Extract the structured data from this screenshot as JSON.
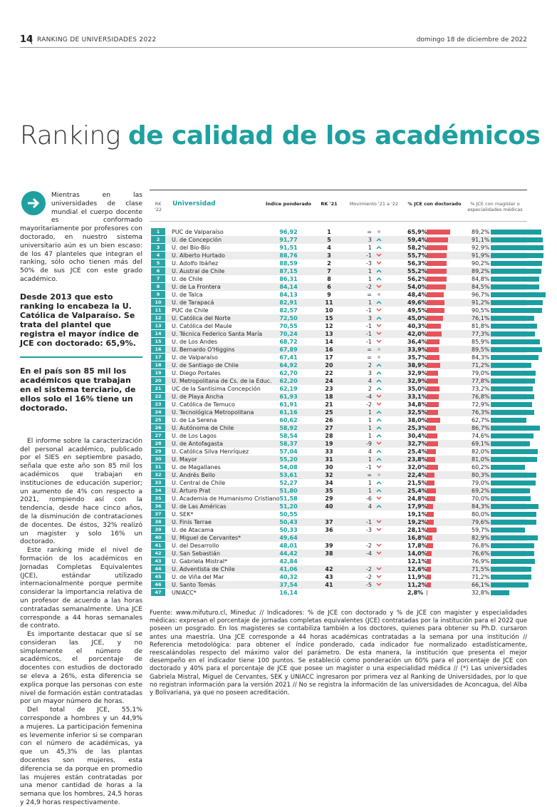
{
  "header": {
    "page": "14",
    "section": "RANKING DE UNIVERSIDADES 2022",
    "date": "domingo 18 de diciembre de 2022"
  },
  "title": {
    "light": "Ranking",
    "bold": "de calidad de los académicos"
  },
  "intro": "Mientras en las universidades de clase mundial el cuerpo docente es conformado mayoritariamente por profesores con doctorado, en nuestro sistema universitario aún es un bien escaso: de los 47 planteles que integran el ranking, sólo ocho tienen más del 50% de sus JCE con este grado académico.",
  "highlights": [
    "Desde 2013 que esto ranking lo encabeza la U. Católica de Valparaíso. Se trata del plantel que registra el mayor índice de JCE con doctorado: 65,9%.",
    "En el país son 85 mil los académicos que trabajan en el sistema terciario, de ellos solo el 16% tiene un doctorado."
  ],
  "body": [
    "El informe sobre la caracterización del personal académico, publicado por el SIES en septiembre pasado, señala que este año son 85 mil los académicos que trabajan en instituciones de educación superior; un aumento de 4% con respecto a 2021, rompiendo así con la tendencia, desde hace cinco años, de la disminución de contrataciones de docentes. De éstos, 32% realizó un magister y solo 16% un doctorado.",
    "Este ranking mide el nivel de formación de los académicos en Jornadas Completas Equivalentes (JCE), estándar utilizado internacionalmente porque permite considerar la importancia relativa de un profesor de acuerdo a las horas contratadas semanalmente. Una JCE corresponde a 44 horas semanales de contrato.",
    "Es importante destacar que sí se consideran las JCE, y no simplemente el número de académicos, el porcentaje de docentes con estudios de doctorado se eleva a 26%, esta diferencia se explica porque las personas con este nivel de formación están contratadas por un mayor número de horas.",
    "Del total de JCE, 55,1% corresponde a hombres y un 44,9% a mujeres. La participación femenina es levemente inferior si se comparan con el número de académicas, ya que un 45,3% de las plantas docentes son mujeres, esta diferencia se da porque en promedio las mujeres están contratadas por una menor cantidad de horas a la semana que los hombres, 24,5 horas y 24,9 horas respectivamente."
  ],
  "table": {
    "columns": [
      "RK '22",
      "Universidad",
      "Índice ponderado",
      "RK '21",
      "Movimiento '21 a '22",
      "% JCE con doctorado",
      "% JCE con magíster o especialidades médicas"
    ],
    "rows": [
      [
        "1",
        "PUC de Valparaíso",
        "96,92",
        "1",
        "=",
        {
          "value": 65.9,
          "label": "65,9%"
        },
        {
          "value": 89.2,
          "label": "89,2%"
        }
      ],
      [
        "2",
        "U. de Concepción",
        "91,77",
        "5",
        "3",
        {
          "value": 59.4,
          "label": "59,4%"
        },
        {
          "value": 91.1,
          "label": "91,1%"
        }
      ],
      [
        "3",
        "U. del Bío-Bío",
        "91,51",
        "4",
        "1",
        {
          "value": 58.2,
          "label": "58,2%"
        },
        {
          "value": 92.9,
          "label": "92,9%"
        }
      ],
      [
        "4",
        "U. Alberto Hurtado",
        "88,76",
        "3",
        "-1",
        {
          "value": 55.7,
          "label": "55,7%"
        },
        {
          "value": 91.9,
          "label": "91,9%"
        }
      ],
      [
        "5",
        "U. Adolfo Ibáñez",
        "88,59",
        "2",
        "-3",
        {
          "value": 56.3,
          "label": "56,3%"
        },
        {
          "value": 90.2,
          "label": "90,2%"
        }
      ],
      [
        "6",
        "U. Austral de Chile",
        "87,15",
        "7",
        "1",
        {
          "value": 55.2,
          "label": "55,2%"
        },
        {
          "value": 89.2,
          "label": "89,2%"
        }
      ],
      [
        "7",
        "U. de Chile",
        "86,31",
        "8",
        "1",
        {
          "value": 56.2,
          "label": "56,2%"
        },
        {
          "value": 84.8,
          "label": "84,8%"
        }
      ],
      [
        "8",
        "U. de La Frontera",
        "84,14",
        "6",
        "-2",
        {
          "value": 54.0,
          "label": "54,0%"
        },
        {
          "value": 84.5,
          "label": "84,5%"
        }
      ],
      [
        "9",
        "U. de Talca",
        "84,13",
        "9",
        "=",
        {
          "value": 48.4,
          "label": "48,4%"
        },
        {
          "value": 96.7,
          "label": "96,7%"
        }
      ],
      [
        "10",
        "U. de Tarapacá",
        "82,91",
        "11",
        "1",
        {
          "value": 49.6,
          "label": "49,6%"
        },
        {
          "value": 91.2,
          "label": "91,2%"
        }
      ],
      [
        "11",
        "PUC de Chile",
        "82,57",
        "10",
        "-1",
        {
          "value": 49.5,
          "label": "49,5%"
        },
        {
          "value": 90.5,
          "label": "90,5%"
        }
      ],
      [
        "12",
        "U. Católica del Norte",
        "72,50",
        "15",
        "3",
        {
          "value": 45.0,
          "label": "45,0%"
        },
        {
          "value": 76.1,
          "label": "76,1%"
        }
      ],
      [
        "13",
        "U. Católica del Maule",
        "70,55",
        "12",
        "-1",
        {
          "value": 40.3,
          "label": "40,3%"
        },
        {
          "value": 81.8,
          "label": "81,8%"
        }
      ],
      [
        "14",
        "U. Técnica Federico Santa María",
        "70,24",
        "13",
        "-1",
        {
          "value": 42.0,
          "label": "42,0%"
        },
        {
          "value": 77.3,
          "label": "77,3%"
        }
      ],
      [
        "15",
        "U. de Los Andes",
        "68,72",
        "14",
        "-1",
        {
          "value": 36.4,
          "label": "36,4%"
        },
        {
          "value": 85.9,
          "label": "85,9%"
        }
      ],
      [
        "16",
        "U. Bernardo O'Higgins",
        "67,89",
        "16",
        "=",
        {
          "value": 33.9,
          "label": "33,9%"
        },
        {
          "value": 89.5,
          "label": "89,5%"
        }
      ],
      [
        "17",
        "U. de Valparaíso",
        "67,41",
        "17",
        "=",
        {
          "value": 35.7,
          "label": "35,7%"
        },
        {
          "value": 84.3,
          "label": "84,3%"
        }
      ],
      [
        "18",
        "U. de Santiago de Chile",
        "64,92",
        "20",
        "2",
        {
          "value": 38.9,
          "label": "38,9%"
        },
        {
          "value": 71.2,
          "label": "71,2%"
        }
      ],
      [
        "19",
        "U. Diego Portales",
        "62,70",
        "22",
        "3",
        {
          "value": 32.9,
          "label": "32,9%"
        },
        {
          "value": 79.0,
          "label": "79,0%"
        }
      ],
      [
        "20",
        "U. Metropolitana de Cs. de la Educ.",
        "62,20",
        "24",
        "4",
        {
          "value": 32.9,
          "label": "32,9%"
        },
        {
          "value": 77.8,
          "label": "77,8%"
        }
      ],
      [
        "21",
        "UC de la Santísima Concepción",
        "62,19",
        "23",
        "2",
        {
          "value": 35.0,
          "label": "35,0%"
        },
        {
          "value": 73.2,
          "label": "73,2%"
        }
      ],
      [
        "22",
        "U. de Playa Ancha",
        "61,93",
        "18",
        "-4",
        {
          "value": 33.1,
          "label": "33,1%"
        },
        {
          "value": 76.8,
          "label": "76,8%"
        }
      ],
      [
        "23",
        "U. Católica de Temuco",
        "61,91",
        "21",
        "-2",
        {
          "value": 34.8,
          "label": "34,8%"
        },
        {
          "value": 72.9,
          "label": "72,9%"
        }
      ],
      [
        "24",
        "U. Tecnológica Metropolitana",
        "61,16",
        "25",
        "1",
        {
          "value": 32.5,
          "label": "32,5%"
        },
        {
          "value": 76.3,
          "label": "76,3%"
        }
      ],
      [
        "25",
        "U. de La Serena",
        "60,62",
        "26",
        "1",
        {
          "value": 38.0,
          "label": "38,0%"
        },
        {
          "value": 62.7,
          "label": "62,7%"
        }
      ],
      [
        "26",
        "U. Autónoma de Chile",
        "58,92",
        "27",
        "1",
        {
          "value": 25.3,
          "label": "25,3%"
        },
        {
          "value": 86.7,
          "label": "86,7%"
        }
      ],
      [
        "27",
        "U. de Los Lagos",
        "58,54",
        "28",
        "1",
        {
          "value": 30.4,
          "label": "30,4%"
        },
        {
          "value": 74.6,
          "label": "74,6%"
        }
      ],
      [
        "28",
        "U. de Antofagasta",
        "58,37",
        "19",
        "-9",
        {
          "value": 32.7,
          "label": "32,7%"
        },
        {
          "value": 69.1,
          "label": "69,1%"
        }
      ],
      [
        "29",
        "U. Católica Silva Henríquez",
        "57,04",
        "33",
        "4",
        {
          "value": 25.4,
          "label": "25,4%"
        },
        {
          "value": 82.0,
          "label": "82,0%"
        }
      ],
      [
        "30",
        "U. Mayor",
        "55,20",
        "31",
        "1",
        {
          "value": 23.8,
          "label": "23,8%"
        },
        {
          "value": 81.0,
          "label": "81,0%"
        }
      ],
      [
        "31",
        "U. de Magallanes",
        "54,08",
        "30",
        "-1",
        {
          "value": 32.0,
          "label": "32,0%"
        },
        {
          "value": 60.2,
          "label": "60,2%"
        }
      ],
      [
        "32",
        "U. Andrés Bello",
        "53,61",
        "32",
        "=",
        {
          "value": 22.4,
          "label": "22,4%"
        },
        {
          "value": 80.3,
          "label": "80,3%"
        }
      ],
      [
        "33",
        "U. Central de Chile",
        "52,27",
        "34",
        "1",
        {
          "value": 21.5,
          "label": "21,5%"
        },
        {
          "value": 79.0,
          "label": "79,0%"
        }
      ],
      [
        "34",
        "U. Arturo Prat",
        "51,80",
        "35",
        "1",
        {
          "value": 25.4,
          "label": "25,4%"
        },
        {
          "value": 69.2,
          "label": "69,2%"
        }
      ],
      [
        "35",
        "U. Academia de Humanismo Cristiano",
        "51,58",
        "29",
        "-6",
        {
          "value": 24.8,
          "label": "24,8%"
        },
        {
          "value": 70.0,
          "label": "70,0%"
        }
      ],
      [
        "36",
        "U. de Las Américas",
        "51,20",
        "40",
        "4",
        {
          "value": 17.9,
          "label": "17,9%"
        },
        {
          "value": 84.3,
          "label": "84,3%"
        }
      ],
      [
        "37",
        "U. SEK*",
        "50,55",
        null,
        null,
        {
          "value": 19.1,
          "label": "19,1%"
        },
        {
          "value": 80.0,
          "label": "80,0%"
        }
      ],
      [
        "38",
        "U. Finis Terrae",
        "50,43",
        "37",
        "-1",
        {
          "value": 19.2,
          "label": "19,2%"
        },
        {
          "value": 79.6,
          "label": "79,6%"
        }
      ],
      [
        "39",
        "U. de Atacama",
        "50,33",
        "36",
        "-3",
        {
          "value": 28.1,
          "label": "28,1%"
        },
        {
          "value": 59.7,
          "label": "59,7%"
        }
      ],
      [
        "40",
        "U. Miguel de Cervantes*",
        "49,64",
        null,
        null,
        {
          "value": 16.8,
          "label": "16,8%"
        },
        {
          "value": 82.9,
          "label": "82,9%"
        }
      ],
      [
        "41",
        "U. del Desarrollo",
        "48,01",
        "39",
        "-2",
        {
          "value": 17.8,
          "label": "17,8%"
        },
        {
          "value": 76.8,
          "label": "76,8%"
        }
      ],
      [
        "42",
        "U. San Sebastián",
        "44,42",
        "38",
        "-4",
        {
          "value": 14.0,
          "label": "14,0%"
        },
        {
          "value": 76.6,
          "label": "76,6%"
        }
      ],
      [
        "43",
        "U. Gabriela Mistral*",
        "42,84",
        null,
        null,
        {
          "value": 12.1,
          "label": "12,1%"
        },
        {
          "value": 76.9,
          "label": "76,9%"
        }
      ],
      [
        "44",
        "U. Adventista de Chile",
        "41,06",
        "42",
        "-2",
        {
          "value": 12.6,
          "label": "12,6%"
        },
        {
          "value": 71.5,
          "label": "71,5%"
        }
      ],
      [
        "45",
        "U. de Viña del Mar",
        "40,32",
        "43",
        "-2",
        {
          "value": 11.9,
          "label": "11,9%"
        },
        {
          "value": 71.2,
          "label": "71,2%"
        }
      ],
      [
        "46",
        "U. Santo Tomás",
        "37,54",
        "41",
        "-5",
        {
          "value": 11.2,
          "label": "11,2%"
        },
        {
          "value": 66.1,
          "label": "66,1%"
        }
      ],
      [
        "47",
        "UNIACC*",
        "16,14",
        null,
        null,
        {
          "value": 2.8,
          "label": "2,8%"
        },
        {
          "value": 32.8,
          "label": "32,8%"
        }
      ]
    ]
  },
  "footnote": "Fuente: www.mifuturo.cl, Mineduc // Indicadores: % de JCE con doctorado y % de JCE con magister y especialidades médicas: expresan el porcentaje de jornadas completas equivalentes (JCE) contratadas por la institución para el 2022 que poseen un posgrado. En los magisteres se contabiliza también a los doctores, quienes para obtener su Ph.D. cursaron antes una maestría. Una JCE corresponde a 44 horas académicas contratadas a la semana por una institución // Referencia metodológica: para obtener el índice ponderado, cada indicador fue normalizado estadísticamente, reescalándolas respecto del máximo valor del parámetro. De esta manera, la institución que presenta el mejor desempeño en el indicador tiene 100 puntos. Se estableció como ponderación un 60% para el porcentaje de JCE con doctorado y 40% para el porcentaje de JCE que posee un magister o una especialidad médica // (*) Las universidades Gabriela Mistral, Miguel de Cervantes, SEK y UNIACC ingresaron por primera vez al Ranking de Universidades, por lo que no registran información para la versión 2021 // No se registra la información de las universidades de Aconcagua, del Alba y Bolivariana, ya que no poseen acreditación."
}
